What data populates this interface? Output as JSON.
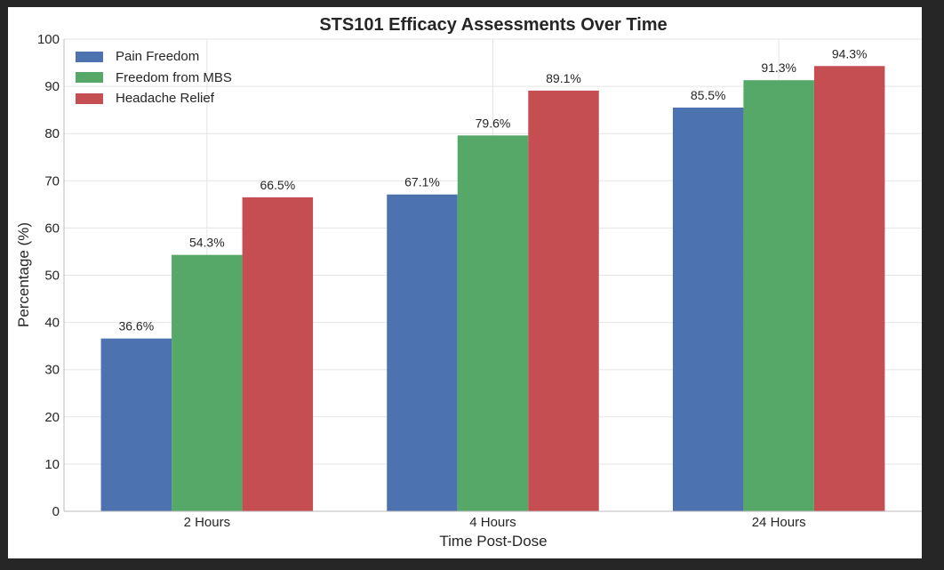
{
  "chart_data": {
    "type": "bar",
    "title": "STS101 Efficacy Assessments Over Time",
    "xlabel": "Time Post-Dose",
    "ylabel": "Percentage (%)",
    "ylim": [
      0,
      100
    ],
    "yticks": [
      0,
      10,
      20,
      30,
      40,
      50,
      60,
      70,
      80,
      90,
      100
    ],
    "categories": [
      "2 Hours",
      "4 Hours",
      "24 Hours"
    ],
    "series": [
      {
        "name": "Pain Freedom",
        "color": "#4c72b0",
        "values": [
          36.6,
          67.1,
          85.5
        ],
        "labels": [
          "36.6%",
          "67.1%",
          "85.5%"
        ]
      },
      {
        "name": "Freedom from MBS",
        "color": "#55a868",
        "values": [
          54.3,
          79.6,
          91.3
        ],
        "labels": [
          "54.3%",
          "79.6%",
          "91.3%"
        ]
      },
      {
        "name": "Headache Relief",
        "color": "#c44e52",
        "values": [
          66.5,
          89.1,
          94.3
        ],
        "labels": [
          "66.5%",
          "89.1%",
          "94.3%"
        ]
      }
    ],
    "grid": true,
    "legend_position": "top-left"
  }
}
